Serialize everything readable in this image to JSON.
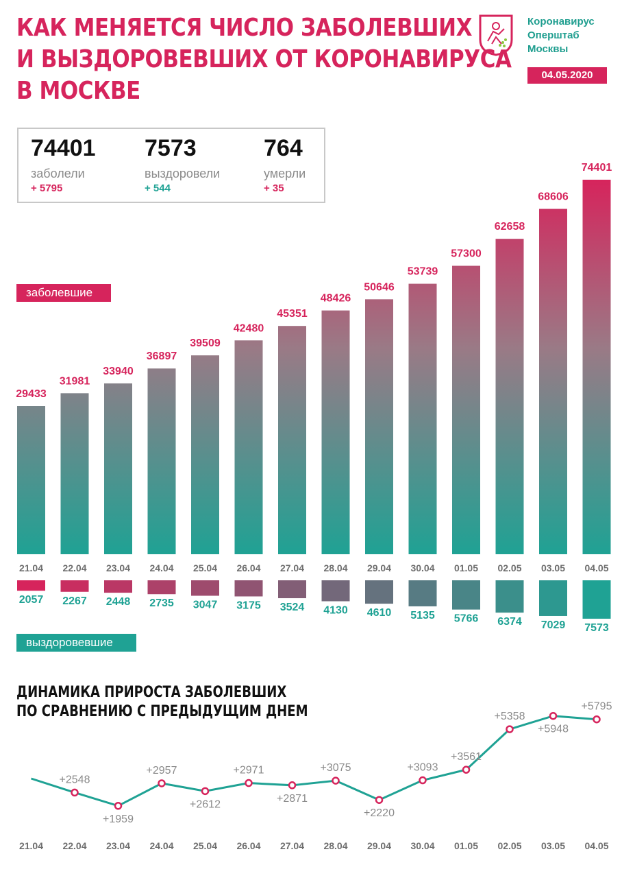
{
  "header": {
    "title_lines": [
      "КАК МЕНЯЕТСЯ ЧИСЛО ЗАБОЛЕВШИХ",
      "И ВЫЗДОРОВЕВШИХ ОТ КОРОНАВИРУСА",
      "В МОСКВЕ"
    ],
    "org_lines": [
      "Коронавирус",
      "Оперштаб",
      "Москвы"
    ],
    "date": "04.05.2020",
    "logo_icon": "moscow-coat-of-arms-icon"
  },
  "stats": {
    "infected": {
      "value": "74401",
      "label": "заболели",
      "delta": "+ 5795"
    },
    "recovered": {
      "value": "7573",
      "label": "выздоровели",
      "delta": "+ 544"
    },
    "deaths": {
      "value": "764",
      "label": "умерли",
      "delta": "+ 35"
    }
  },
  "labels": {
    "infected_series": "заболевшие",
    "recovered_series": "выздоровевшие",
    "line_title_lines": [
      "ДИНАМИКА ПРИРОСТА ЗАБОЛЕВШИХ",
      "ПО СРАВНЕНИЮ С ПРЕДЫДУЩИМ ДНЕМ"
    ]
  },
  "colors": {
    "pink": "#d6245c",
    "teal": "#1fa294",
    "gray_text": "#8a8a8a",
    "date_text": "#6e6e6e"
  },
  "chart_data": [
    {
      "type": "bar",
      "title": "заболевшие",
      "categories": [
        "21.04",
        "22.04",
        "23.04",
        "24.04",
        "25.04",
        "26.04",
        "27.04",
        "28.04",
        "29.04",
        "30.04",
        "01.05",
        "02.05",
        "03.05",
        "04.05"
      ],
      "values": [
        29433,
        31981,
        33940,
        36897,
        39509,
        42480,
        45351,
        48426,
        50646,
        53739,
        57300,
        62658,
        68606,
        74401
      ],
      "ylim": [
        0,
        74401
      ]
    },
    {
      "type": "bar",
      "title": "выздоровевшие",
      "categories": [
        "21.04",
        "22.04",
        "23.04",
        "24.04",
        "25.04",
        "26.04",
        "27.04",
        "28.04",
        "29.04",
        "30.04",
        "01.05",
        "02.05",
        "03.05",
        "04.05"
      ],
      "values": [
        2057,
        2267,
        2448,
        2735,
        3047,
        3175,
        3524,
        4130,
        4610,
        5135,
        5766,
        6374,
        7029,
        7573
      ],
      "ylim": [
        0,
        7573
      ]
    },
    {
      "type": "line",
      "title": "ДИНАМИКА ПРИРОСТА ЗАБОЛЕВШИХ ПО СРАВНЕНИЮ С ПРЕДЫДУЩИМ ДНЕМ",
      "categories": [
        "21.04",
        "22.04",
        "23.04",
        "24.04",
        "25.04",
        "26.04",
        "27.04",
        "28.04",
        "29.04",
        "30.04",
        "01.05",
        "02.05",
        "03.05",
        "04.05"
      ],
      "values": [
        null,
        2548,
        1959,
        2957,
        2612,
        2971,
        2871,
        3075,
        2220,
        3093,
        3561,
        5358,
        5948,
        5795
      ],
      "point_labels": [
        "",
        "+2548",
        "+1959",
        "+2957",
        "+2612",
        "+2971",
        "+2871",
        "+3075",
        "+2220",
        "+3093",
        "+3561",
        "+5358",
        "+5948",
        "+5795"
      ],
      "ylim": [
        1800,
        6000
      ]
    }
  ]
}
